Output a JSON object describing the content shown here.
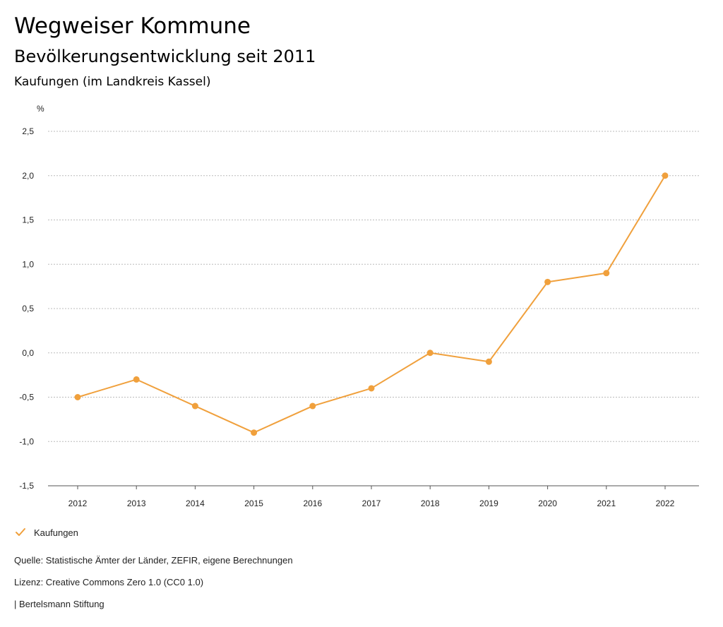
{
  "header": {
    "title": "Wegweiser Kommune",
    "subtitle": "Bevölkerungsentwicklung seit 2011",
    "region": "Kaufungen (im Landkreis Kassel)"
  },
  "legend": {
    "label": "Kaufungen",
    "icon": "check-icon"
  },
  "footer": {
    "source": "Quelle: Statistische Ämter der Länder, ZEFIR, eigene Berechnungen",
    "license": "Lizenz: Creative Commons Zero 1.0 (CC0 1.0)",
    "publisher": "| Bertelsmann Stiftung"
  },
  "colors": {
    "series": "#f0a03c",
    "grid": "#bbbbbb",
    "axis": "#555555"
  },
  "chart_data": {
    "type": "line",
    "title": "Bevölkerungsentwicklung seit 2011",
    "xlabel": "",
    "ylabel": "%",
    "categories": [
      "2012",
      "2013",
      "2014",
      "2015",
      "2016",
      "2017",
      "2018",
      "2019",
      "2020",
      "2021",
      "2022"
    ],
    "series": [
      {
        "name": "Kaufungen",
        "values": [
          -0.5,
          -0.3,
          -0.6,
          -0.9,
          -0.6,
          -0.4,
          0.0,
          -0.1,
          0.8,
          0.9,
          2.0
        ]
      }
    ],
    "ylim": [
      -1.5,
      2.5
    ],
    "yticks": [
      2.5,
      2.0,
      1.5,
      1.0,
      0.5,
      0.0,
      -0.5,
      -1.0,
      -1.5
    ],
    "ytick_labels": [
      "2,5",
      "2,0",
      "1,5",
      "1,0",
      "0,5",
      "0,0",
      "-0,5",
      "-1,0",
      "-1,5"
    ],
    "grid": true,
    "legend_position": "bottom-left"
  }
}
